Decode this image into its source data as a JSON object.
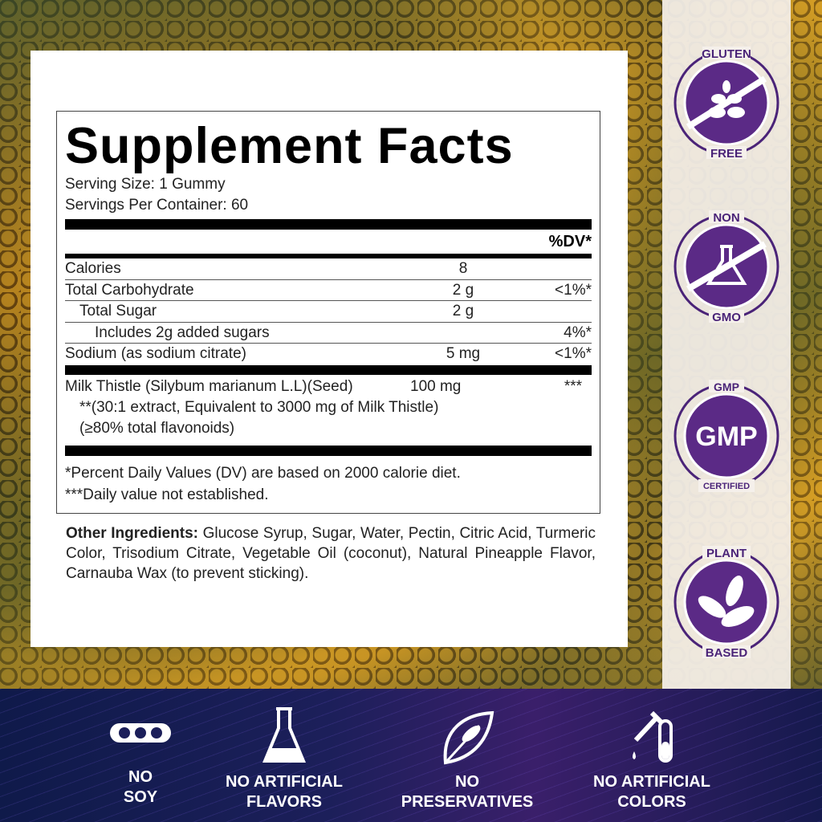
{
  "facts": {
    "title": "Supplement Facts",
    "serving_size": "Serving Size: 1 Gummy",
    "servings": "Servings Per Container: 60",
    "dv_header": "%DV*",
    "rows": [
      {
        "name": "Calories",
        "amount": "8",
        "dv": ""
      },
      {
        "name": "Total Carbohydrate",
        "amount": "2 g",
        "dv": "<1%*"
      },
      {
        "name": "Total Sugar",
        "amount": "2 g",
        "dv": ""
      },
      {
        "name": "Includes 2g added sugars",
        "amount": "",
        "dv": "4%*"
      },
      {
        "name": "Sodium (as sodium citrate)",
        "amount": "5 mg",
        "dv": "<1%*"
      }
    ],
    "ingredient": {
      "name": "Milk Thistle (Silybum marianum L.L)(Seed)",
      "amount": "100 mg",
      "dv": "***",
      "note1": "**(30:1 extract, Equivalent to 3000 mg of Milk Thistle)",
      "note2": "(≥80% total flavonoids)"
    },
    "footnote1": "*Percent Daily Values (DV) are based on 2000 calorie diet.",
    "footnote2": "***Daily value not established."
  },
  "other": {
    "label": "Other Ingredients:",
    "text": " Glucose Syrup, Sugar, Water, Pectin, Citric Acid, Turmeric Color, Trisodium Citrate, Vegetable Oil (coconut), Natural Pineapple Flavor, Carnauba Wax (to prevent sticking)."
  },
  "badges": [
    {
      "top": "GLUTEN",
      "bottom": "FREE",
      "icon": "wheat-icon"
    },
    {
      "top": "NON",
      "bottom": "GMO",
      "icon": "flask-icon"
    },
    {
      "top": "GMP",
      "bottom": "CERTIFIED",
      "center": "GMP"
    },
    {
      "top": "PLANT",
      "bottom": "BASED",
      "icon": "leaves-icon"
    }
  ],
  "features": [
    {
      "line1": "NO",
      "line2": "SOY",
      "icon": "soybean-icon"
    },
    {
      "line1": "NO ARTIFICIAL",
      "line2": "FLAVORS",
      "icon": "flask-icon"
    },
    {
      "line1": "NO",
      "line2": "PRESERVATIVES",
      "icon": "leaf-icon"
    },
    {
      "line1": "NO ARTIFICIAL",
      "line2": "COLORS",
      "icon": "dropper-icon"
    }
  ],
  "colors": {
    "badge_purple": "#5b2a86",
    "band": "#1c1f5a"
  }
}
